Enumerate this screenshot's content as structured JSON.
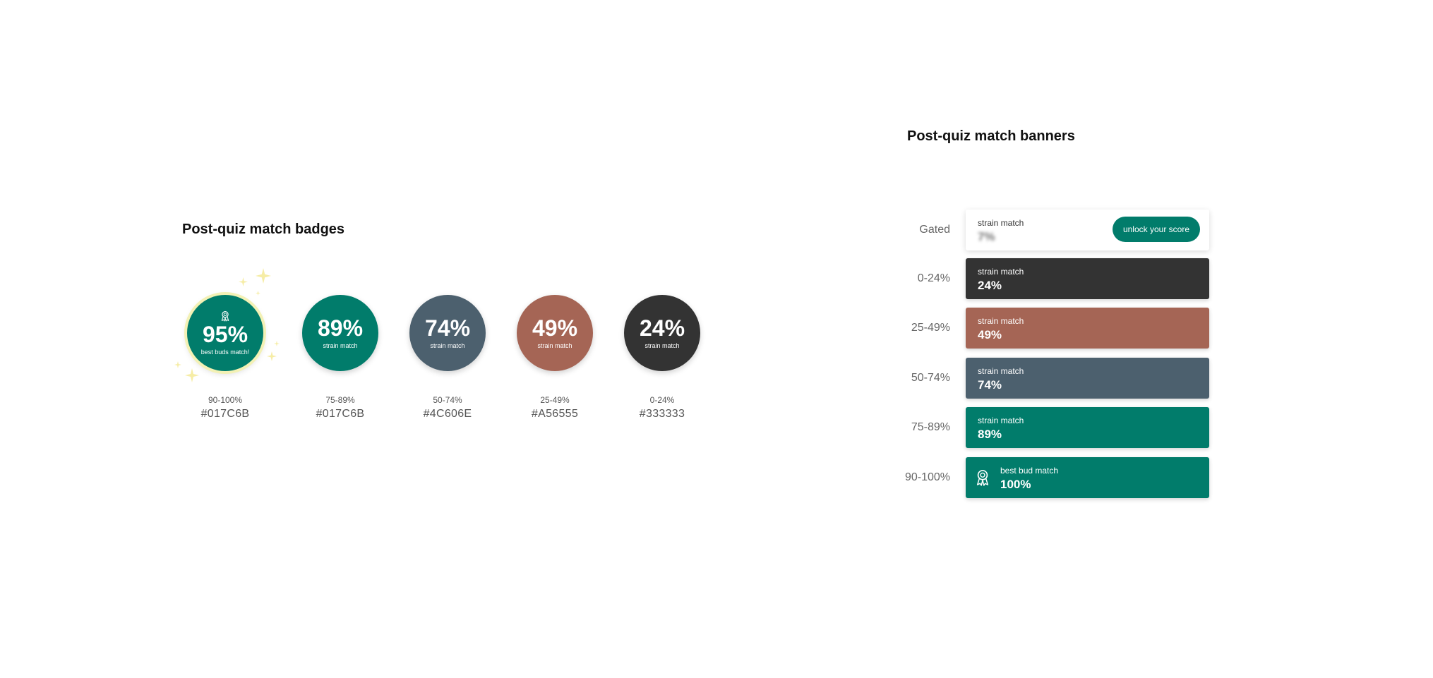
{
  "badges_section": {
    "title": "Post-quiz match badges"
  },
  "badges": [
    {
      "pct": "95%",
      "sub": "best buds match!",
      "range": "90-100%",
      "hex": "#017C6B",
      "color": "#017C6B",
      "best": true
    },
    {
      "pct": "89%",
      "sub": "strain match",
      "range": "75-89%",
      "hex": "#017C6B",
      "color": "#017C6B"
    },
    {
      "pct": "74%",
      "sub": "strain match",
      "range": "50-74%",
      "hex": "#4C606E",
      "color": "#4C606E"
    },
    {
      "pct": "49%",
      "sub": "strain match",
      "range": "25-49%",
      "hex": "#A56555",
      "color": "#A56555"
    },
    {
      "pct": "24%",
      "sub": "strain match",
      "range": "0-24%",
      "hex": "#333333",
      "color": "#333333"
    }
  ],
  "banners_section": {
    "title": "Post-quiz match banners"
  },
  "banners": [
    {
      "row_label": "Gated",
      "label": "strain match",
      "value": "7%",
      "color": "#FFFFFF",
      "button": "unlock your score"
    },
    {
      "row_label": "0-24%",
      "label": "strain match",
      "value": "24%",
      "color": "#333333"
    },
    {
      "row_label": "25-49%",
      "label": "strain match",
      "value": "49%",
      "color": "#A56555"
    },
    {
      "row_label": "50-74%",
      "label": "strain match",
      "value": "74%",
      "color": "#4C606E"
    },
    {
      "row_label": "75-89%",
      "label": "strain match",
      "value": "89%",
      "color": "#017C6B"
    },
    {
      "row_label": "90-100%",
      "label": "best bud match",
      "value": "100%",
      "color": "#017C6B",
      "icon": "award-icon"
    }
  ],
  "icons": {
    "award": "award-icon",
    "sparkle": "sparkle-icon"
  },
  "colors": {
    "sparkle": "#F6EDA6",
    "button": "#017C6B"
  }
}
